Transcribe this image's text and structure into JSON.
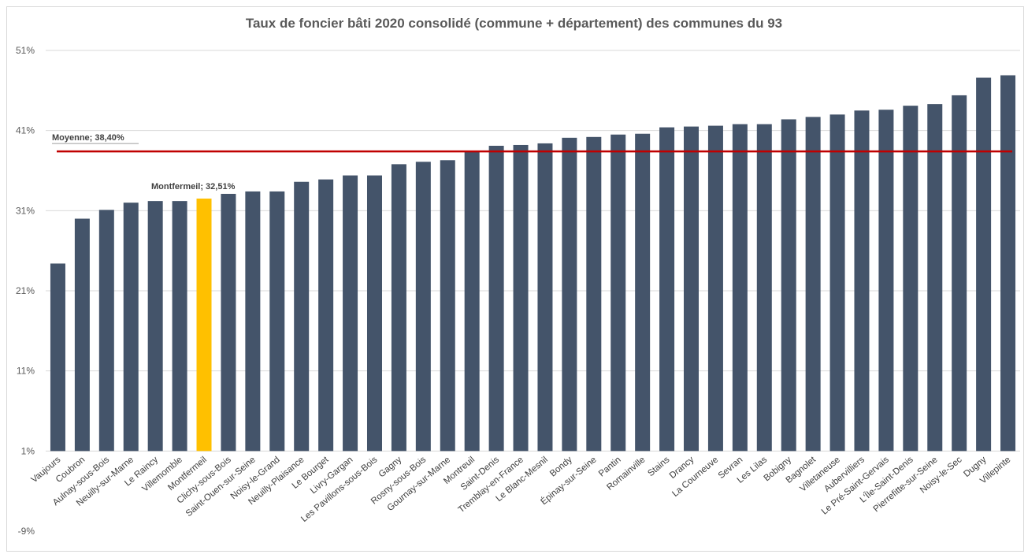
{
  "chart_data": {
    "type": "bar",
    "title": "Taux de foncier bâti 2020 consolidé (commune + département) des communes du 93",
    "ylim": [
      -9,
      51
    ],
    "yticks": [
      "51%",
      "41%",
      "31%",
      "21%",
      "11%",
      "1%",
      "-9%"
    ],
    "ytick_values": [
      51,
      41,
      31,
      21,
      11,
      1,
      -9
    ],
    "grid": true,
    "categories": [
      "Vaujours",
      "Coubron",
      "Aulnay-sous-Bois",
      "Neuilly-sur-Marne",
      "Le Raincy",
      "Villemomble",
      "Montfermeil",
      "Clichy-sous-Bois",
      "Saint-Ouen-sur-Seine",
      "Noisy-le-Grand",
      "Neuilly-Plaisance",
      "Le Bourget",
      "Livry-Gargan",
      "Les Pavillons-sous-Bois",
      "Gagny",
      "Rosny-sous-Bois",
      "Gournay-sur-Marne",
      "Montreuil",
      "Saint-Denis",
      "Tremblay-en-France",
      "Le Blanc-Mesnil",
      "Bondy",
      "Épinay-sur-Seine",
      "Pantin",
      "Romainville",
      "Stains",
      "Drancy",
      "La Courneuve",
      "Sevran",
      "Les Lilas",
      "Bobigny",
      "Bagnolet",
      "Villetaneuse",
      "Aubervilliers",
      "Le Pré-Saint-Gervais",
      "L'Île-Saint-Denis",
      "Pierrefitte-sur-Seine",
      "Noisy-le-Sec",
      "Dugny",
      "Villepinte"
    ],
    "series": [
      {
        "values": [
          24.4,
          30.0,
          31.1,
          32.0,
          32.2,
          32.2,
          32.51,
          33.1,
          33.4,
          33.4,
          34.6,
          34.9,
          35.4,
          35.4,
          36.8,
          37.1,
          37.3,
          38.4,
          39.1,
          39.2,
          39.4,
          40.1,
          40.2,
          40.5,
          40.6,
          41.4,
          41.5,
          41.6,
          41.8,
          41.8,
          42.4,
          42.7,
          43.0,
          43.5,
          43.6,
          44.1,
          44.3,
          45.4,
          47.6,
          47.9
        ]
      }
    ],
    "highlight_index": 6,
    "colors": {
      "bar": "#44546a",
      "highlight": "#ffc000",
      "mean_line": "#c00000",
      "grid": "#d9d9d9"
    },
    "annotations": [
      {
        "label": "Moyenne; 38,40%",
        "value": 38.4,
        "type": "mean-line"
      },
      {
        "label": "Montfermeil; 32,51%",
        "value": 32.51,
        "type": "point-label"
      }
    ]
  }
}
